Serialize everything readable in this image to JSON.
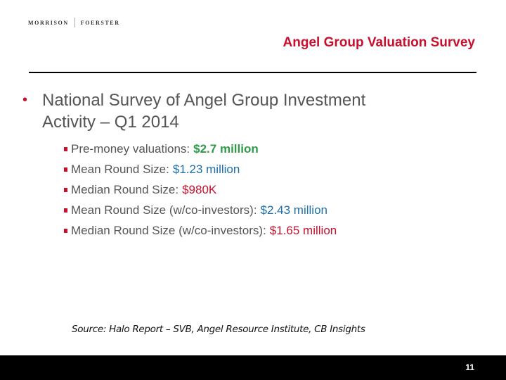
{
  "header": {
    "logo": {
      "left": "MORRISON",
      "right": "FOERSTER"
    },
    "title": "Angel Group Valuation Survey",
    "title_color": "#c8102e"
  },
  "main": {
    "bullet_line1": "National Survey of Angel Group Investment",
    "bullet_line2": "Activity – Q1 2014",
    "bullet_glyph": "•",
    "sub_bullets": [
      {
        "label": "Pre-money valuations:",
        "value": "$2.7 million",
        "value_color": "#2e9b48"
      },
      {
        "label": "Mean Round Size:",
        "value": "$1.23 million",
        "value_color": "#1f6fa8"
      },
      {
        "label": "Median Round Size:",
        "value": "$980K",
        "value_color": "#c8102e"
      },
      {
        "label": "Mean Round Size (w/co-investors):",
        "value": "$2.43 million",
        "value_color": "#1f6fa8"
      },
      {
        "label": "Median Round Size (w/co-investors):",
        "value": "$1.65 million",
        "value_color": "#c8102e"
      }
    ]
  },
  "source": "Source: Halo Report – SVB, Angel Resource Institute, CB Insights",
  "footer": {
    "page_number": "11"
  }
}
